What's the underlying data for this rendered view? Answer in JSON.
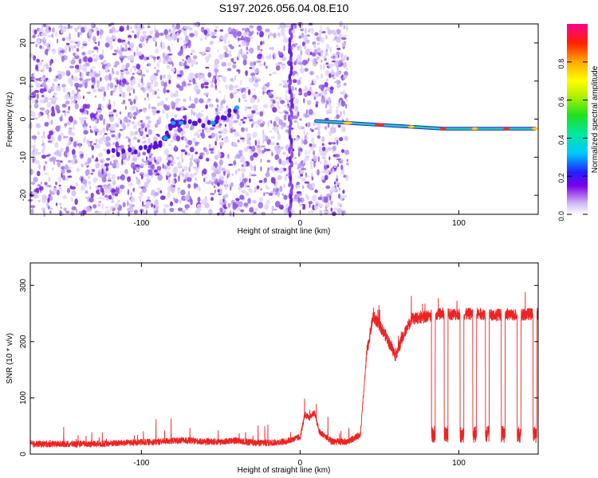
{
  "title": "S197.2026.056.04.08.E10",
  "chart_data": [
    {
      "type": "heatmap",
      "panel": "spectrogram",
      "xlabel": "Height of straight line (km)",
      "ylabel": "Frequency (Hz)",
      "xlim": [
        -170,
        150
      ],
      "ylim": [
        -25,
        25
      ],
      "xticks": [
        -100,
        0,
        100
      ],
      "yticks": [
        -20,
        -10,
        0,
        10,
        20
      ],
      "colorbar": {
        "label": "Normalized spectral amplitude",
        "range": [
          0,
          1
        ],
        "ticks": [
          0.0,
          0.2,
          0.4,
          0.6,
          0.8
        ]
      },
      "features": [
        {
          "name": "noise region",
          "x_range": [
            -170,
            30
          ],
          "freq_range": [
            -25,
            25
          ]
        },
        {
          "name": "vertical streak",
          "x": -6
        },
        {
          "name": "rising trace",
          "points": [
            [
              -120,
              -9
            ],
            [
              -95,
              -8
            ],
            [
              -85,
              -5
            ],
            [
              -80,
              -1
            ],
            [
              -75,
              -1
            ],
            [
              -55,
              -1
            ],
            [
              -40,
              3
            ]
          ]
        },
        {
          "name": "carrier line",
          "points": [
            [
              10,
              -0.5
            ],
            [
              30,
              -1
            ],
            [
              50,
              -1.5
            ],
            [
              70,
              -2
            ],
            [
              90,
              -2.5
            ],
            [
              110,
              -2.5
            ],
            [
              130,
              -2.5
            ],
            [
              148,
              -2.5
            ]
          ]
        }
      ]
    },
    {
      "type": "line",
      "panel": "snr",
      "xlabel": "Height of straight line (km)",
      "ylabel": "SNR (10 * v/v)",
      "xlim": [
        -170,
        150
      ],
      "ylim": [
        0,
        340
      ],
      "xticks": [
        -100,
        0,
        100
      ],
      "yticks": [
        0,
        100,
        200,
        300
      ],
      "series": [
        {
          "name": "SNR",
          "color": "#ee2222",
          "x": [
            -170,
            -150,
            -130,
            -110,
            -90,
            -80,
            -70,
            -60,
            -50,
            -40,
            -30,
            -20,
            -10,
            0,
            3,
            6,
            9,
            12,
            20,
            30,
            38,
            42,
            46,
            50,
            55,
            60,
            65,
            70,
            80,
            90,
            100,
            110,
            120,
            130,
            140,
            150
          ],
          "values": [
            18,
            18,
            18,
            20,
            22,
            24,
            24,
            22,
            22,
            24,
            20,
            20,
            22,
            30,
            70,
            65,
            75,
            40,
            22,
            22,
            35,
            180,
            245,
            230,
            205,
            175,
            210,
            240,
            245,
            250,
            248,
            250,
            248,
            248,
            248,
            250
          ]
        }
      ],
      "dropouts": [
        84,
        92,
        102,
        110,
        118,
        128,
        138,
        148
      ]
    }
  ]
}
